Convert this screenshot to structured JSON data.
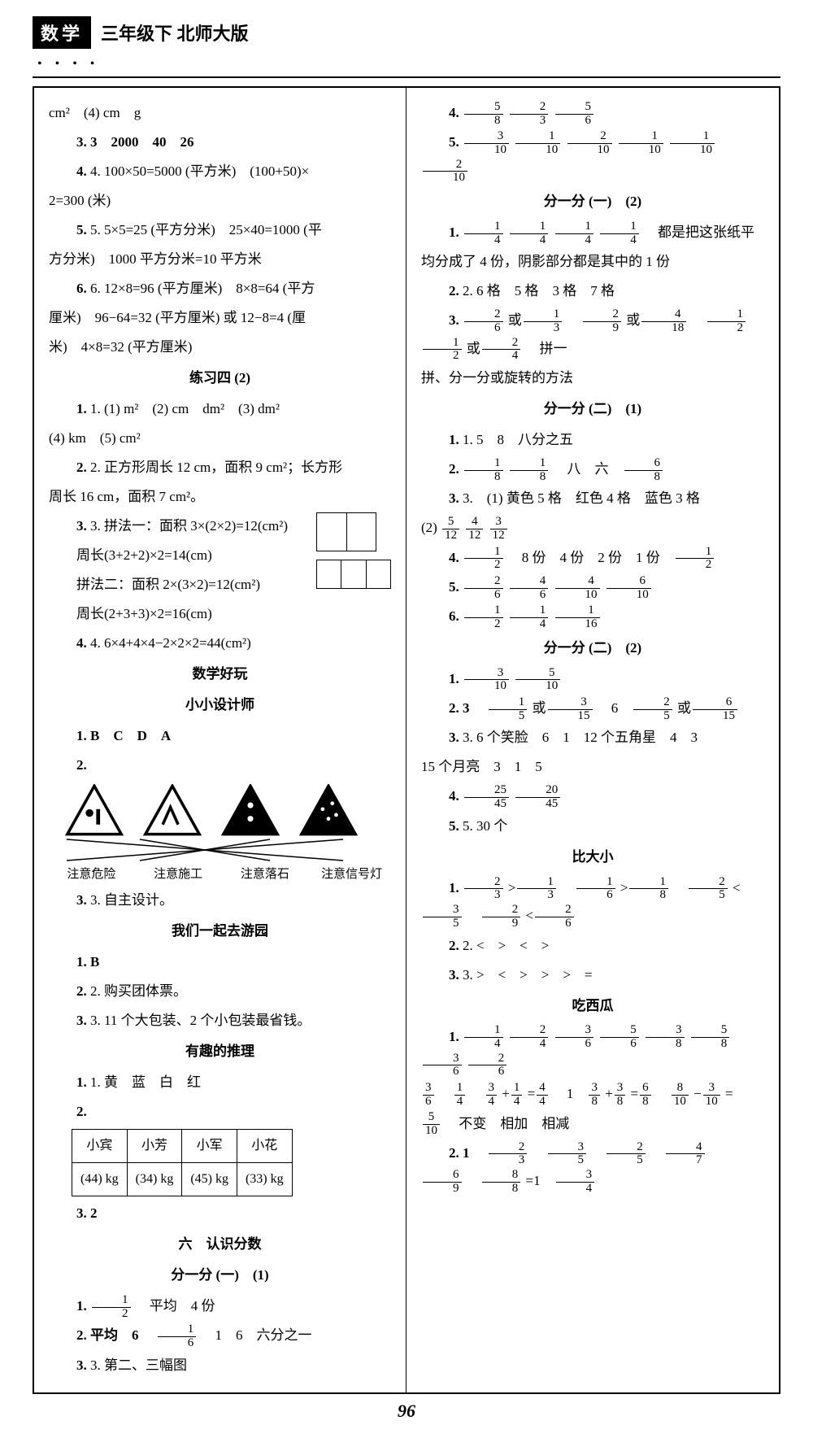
{
  "header": {
    "subject": "数学",
    "grade": "三年级下 北师大版"
  },
  "page_number": "96",
  "left": {
    "l1": "cm²　(4) cm　g",
    "l2": "3. 3　2000　40　26",
    "l3a": "4. 100×50=5000 (平方米)　(100+50)×",
    "l3b": "2=300 (米)",
    "l4a": "5. 5×5=25 (平方分米)　25×40=1000 (平",
    "l4b": "方分米)　1000 平方分米=10 平方米",
    "l5a": "6. 12×8=96 (平方厘米)　8×8=64 (平方",
    "l5b": "厘米)　96−64=32 (平方厘米) 或 12−8=4 (厘",
    "l5c": "米)　4×8=32 (平方厘米)",
    "sec1": "练习四 (2)",
    "l6a": "1. (1) m²　(2) cm　dm²　(3) dm²",
    "l6b": "(4) km　(5) cm²",
    "l7a": "2. 正方形周长 12 cm，面积 9 cm²；长方形",
    "l7b": "周长 16 cm，面积 7 cm²。",
    "l8a": "3. 拼法一：面积 3×(2×2)=12(cm²)",
    "l8b": "周长(3+2+2)×2=14(cm)",
    "l8c": "拼法二：面积 2×(3×2)=12(cm²)",
    "l8d": "周长(2+3+3)×2=16(cm)",
    "l9": "4. 6×4+4×4−2×2×2=44(cm²)",
    "sec2": "数学好玩",
    "sec3": "小小设计师",
    "l10": "1. B　C　D　A",
    "l11": "2.",
    "caps": [
      "注意危险",
      "注意施工",
      "注意落石",
      "注意信号灯"
    ],
    "l12": "3. 自主设计。",
    "sec4": "我们一起去游园",
    "l13": "1. B",
    "l14": "2. 购买团体票。",
    "l15": "3. 11 个大包装、2 个小包装最省钱。",
    "sec5": "有趣的推理",
    "l16": "1. 黄　蓝　白　红",
    "l17": "2.",
    "table_header": [
      "小宾",
      "小芳",
      "小军",
      "小花"
    ],
    "table_row": [
      "(44) kg",
      "(34) kg",
      "(45) kg",
      "(33) kg"
    ],
    "l18": "3. 2",
    "sec6": "六　认识分数",
    "sec7": "分一分 (一)　(1)",
    "l19a": "1.",
    "l19b": "　平均　4 份",
    "l20a": "2. 平均　6　",
    "l20b": "　1　6　六分之一",
    "l21": "3. 第二、三幅图"
  },
  "right": {
    "r1": "4.",
    "r1f": [
      [
        "5",
        "8"
      ],
      [
        "2",
        "3"
      ],
      [
        "5",
        "6"
      ]
    ],
    "r2": "5.",
    "r2f": [
      [
        "3",
        "10"
      ],
      [
        "1",
        "10"
      ],
      [
        "2",
        "10"
      ],
      [
        "1",
        "10"
      ],
      [
        "1",
        "10"
      ],
      [
        "2",
        "10"
      ]
    ],
    "sec1": "分一分 (一)　(2)",
    "r3": "1.",
    "r3f": [
      [
        "1",
        "4"
      ],
      [
        "1",
        "4"
      ],
      [
        "1",
        "4"
      ],
      [
        "1",
        "4"
      ]
    ],
    "r3b": "　都是把这张纸平",
    "r4": "均分成了 4 份，阴影部分都是其中的 1 份",
    "r5": "2. 6 格　5 格　3 格　7 格",
    "r6a": "3.",
    "r6f": [
      [
        "2",
        "6"
      ],
      "或",
      [
        "1",
        "3"
      ],
      "　",
      [
        "2",
        "9"
      ],
      "或",
      [
        "4",
        "18"
      ],
      "　",
      [
        "1",
        "2"
      ],
      "　",
      [
        "1",
        "2"
      ],
      "或",
      [
        "2",
        "4"
      ]
    ],
    "r6b": "　拼一",
    "r7": "拼、分一分或旋转的方法",
    "sec2": "分一分 (二)　(1)",
    "r8": "1. 5　8　八分之五",
    "r9": "2.",
    "r9f": [
      [
        "1",
        "8"
      ],
      [
        "1",
        "8"
      ]
    ],
    "r9b": "　八　六　",
    "r9f2": [
      [
        "6",
        "8"
      ]
    ],
    "r10a": "3.　(1) 黄色 5 格　红色 4 格　蓝色 3 格",
    "r10b": "(2)",
    "r10f": [
      [
        "5",
        "12"
      ],
      [
        "4",
        "12"
      ],
      [
        "3",
        "12"
      ]
    ],
    "r11": "4.",
    "r11f1": [
      [
        "1",
        "2"
      ]
    ],
    "r11b": "　8 份　4 份　2 份　1 份　",
    "r11f2": [
      [
        "1",
        "2"
      ]
    ],
    "r12": "5.",
    "r12f": [
      [
        "2",
        "6"
      ],
      [
        "4",
        "6"
      ],
      [
        "4",
        "10"
      ],
      [
        "6",
        "10"
      ]
    ],
    "r13": "6.",
    "r13f": [
      [
        "1",
        "2"
      ],
      [
        "1",
        "4"
      ],
      [
        "1",
        "16"
      ]
    ],
    "sec3": "分一分 (二)　(2)",
    "r14": "1.",
    "r14f": [
      [
        "3",
        "10"
      ],
      [
        "5",
        "10"
      ]
    ],
    "r15a": "2. 3　",
    "r15f": [
      [
        "1",
        "5"
      ],
      "或",
      [
        "3",
        "15"
      ],
      "　6　",
      [
        "2",
        "5"
      ],
      "或",
      [
        "6",
        "15"
      ]
    ],
    "r16a": "3. 6 个笑脸　6　1　12 个五角星　4　3",
    "r16b": "15 个月亮　3　1　5",
    "r17": "4.",
    "r17f": [
      [
        "25",
        "45"
      ],
      [
        "20",
        "45"
      ]
    ],
    "r18": "5. 30 个",
    "sec4": "比大小",
    "r19a": "1.",
    "r19f": [
      [
        "2",
        "3"
      ],
      ">",
      [
        "1",
        "3"
      ],
      "　",
      [
        "1",
        "6"
      ],
      ">",
      [
        "1",
        "8"
      ],
      "　",
      [
        "2",
        "5"
      ],
      "<",
      [
        "3",
        "5"
      ],
      "　",
      [
        "2",
        "9"
      ],
      "<",
      [
        "2",
        "6"
      ]
    ],
    "r20": "2. <　>　<　>",
    "r21": "3. >　<　>　>　>　=",
    "sec5": "吃西瓜",
    "r22a": "1.",
    "r22f": [
      [
        "1",
        "4"
      ],
      [
        "2",
        "4"
      ],
      [
        "3",
        "6"
      ],
      [
        "5",
        "6"
      ],
      [
        "3",
        "8"
      ],
      [
        "5",
        "8"
      ],
      [
        "3",
        "6"
      ],
      [
        "2",
        "6"
      ]
    ],
    "r23a": "",
    "r23f": [
      [
        "3",
        "6"
      ],
      "　",
      [
        "1",
        "4"
      ],
      "　",
      [
        "3",
        "4"
      ],
      "+",
      [
        "1",
        "4"
      ],
      "=",
      [
        "4",
        "4"
      ],
      "　1　",
      [
        "3",
        "8"
      ],
      "+",
      [
        "3",
        "8"
      ],
      "=",
      [
        "6",
        "8"
      ],
      "　",
      [
        "8",
        "10"
      ],
      "−",
      [
        "3",
        "10"
      ],
      "="
    ],
    "r24a": "",
    "r24f": [
      [
        "5",
        "10"
      ]
    ],
    "r24b": "　不变　相加　相减",
    "r25a": "2. 1　",
    "r25f": [
      [
        "2",
        "3"
      ],
      "　",
      [
        "3",
        "5"
      ],
      "　",
      [
        "2",
        "5"
      ],
      "　",
      [
        "4",
        "7"
      ],
      "　",
      [
        "6",
        "9"
      ],
      "　",
      [
        "8",
        "8"
      ],
      "=1　",
      [
        "3",
        "4"
      ]
    ]
  },
  "colors": {
    "fg": "#000000",
    "bg": "#ffffff"
  }
}
